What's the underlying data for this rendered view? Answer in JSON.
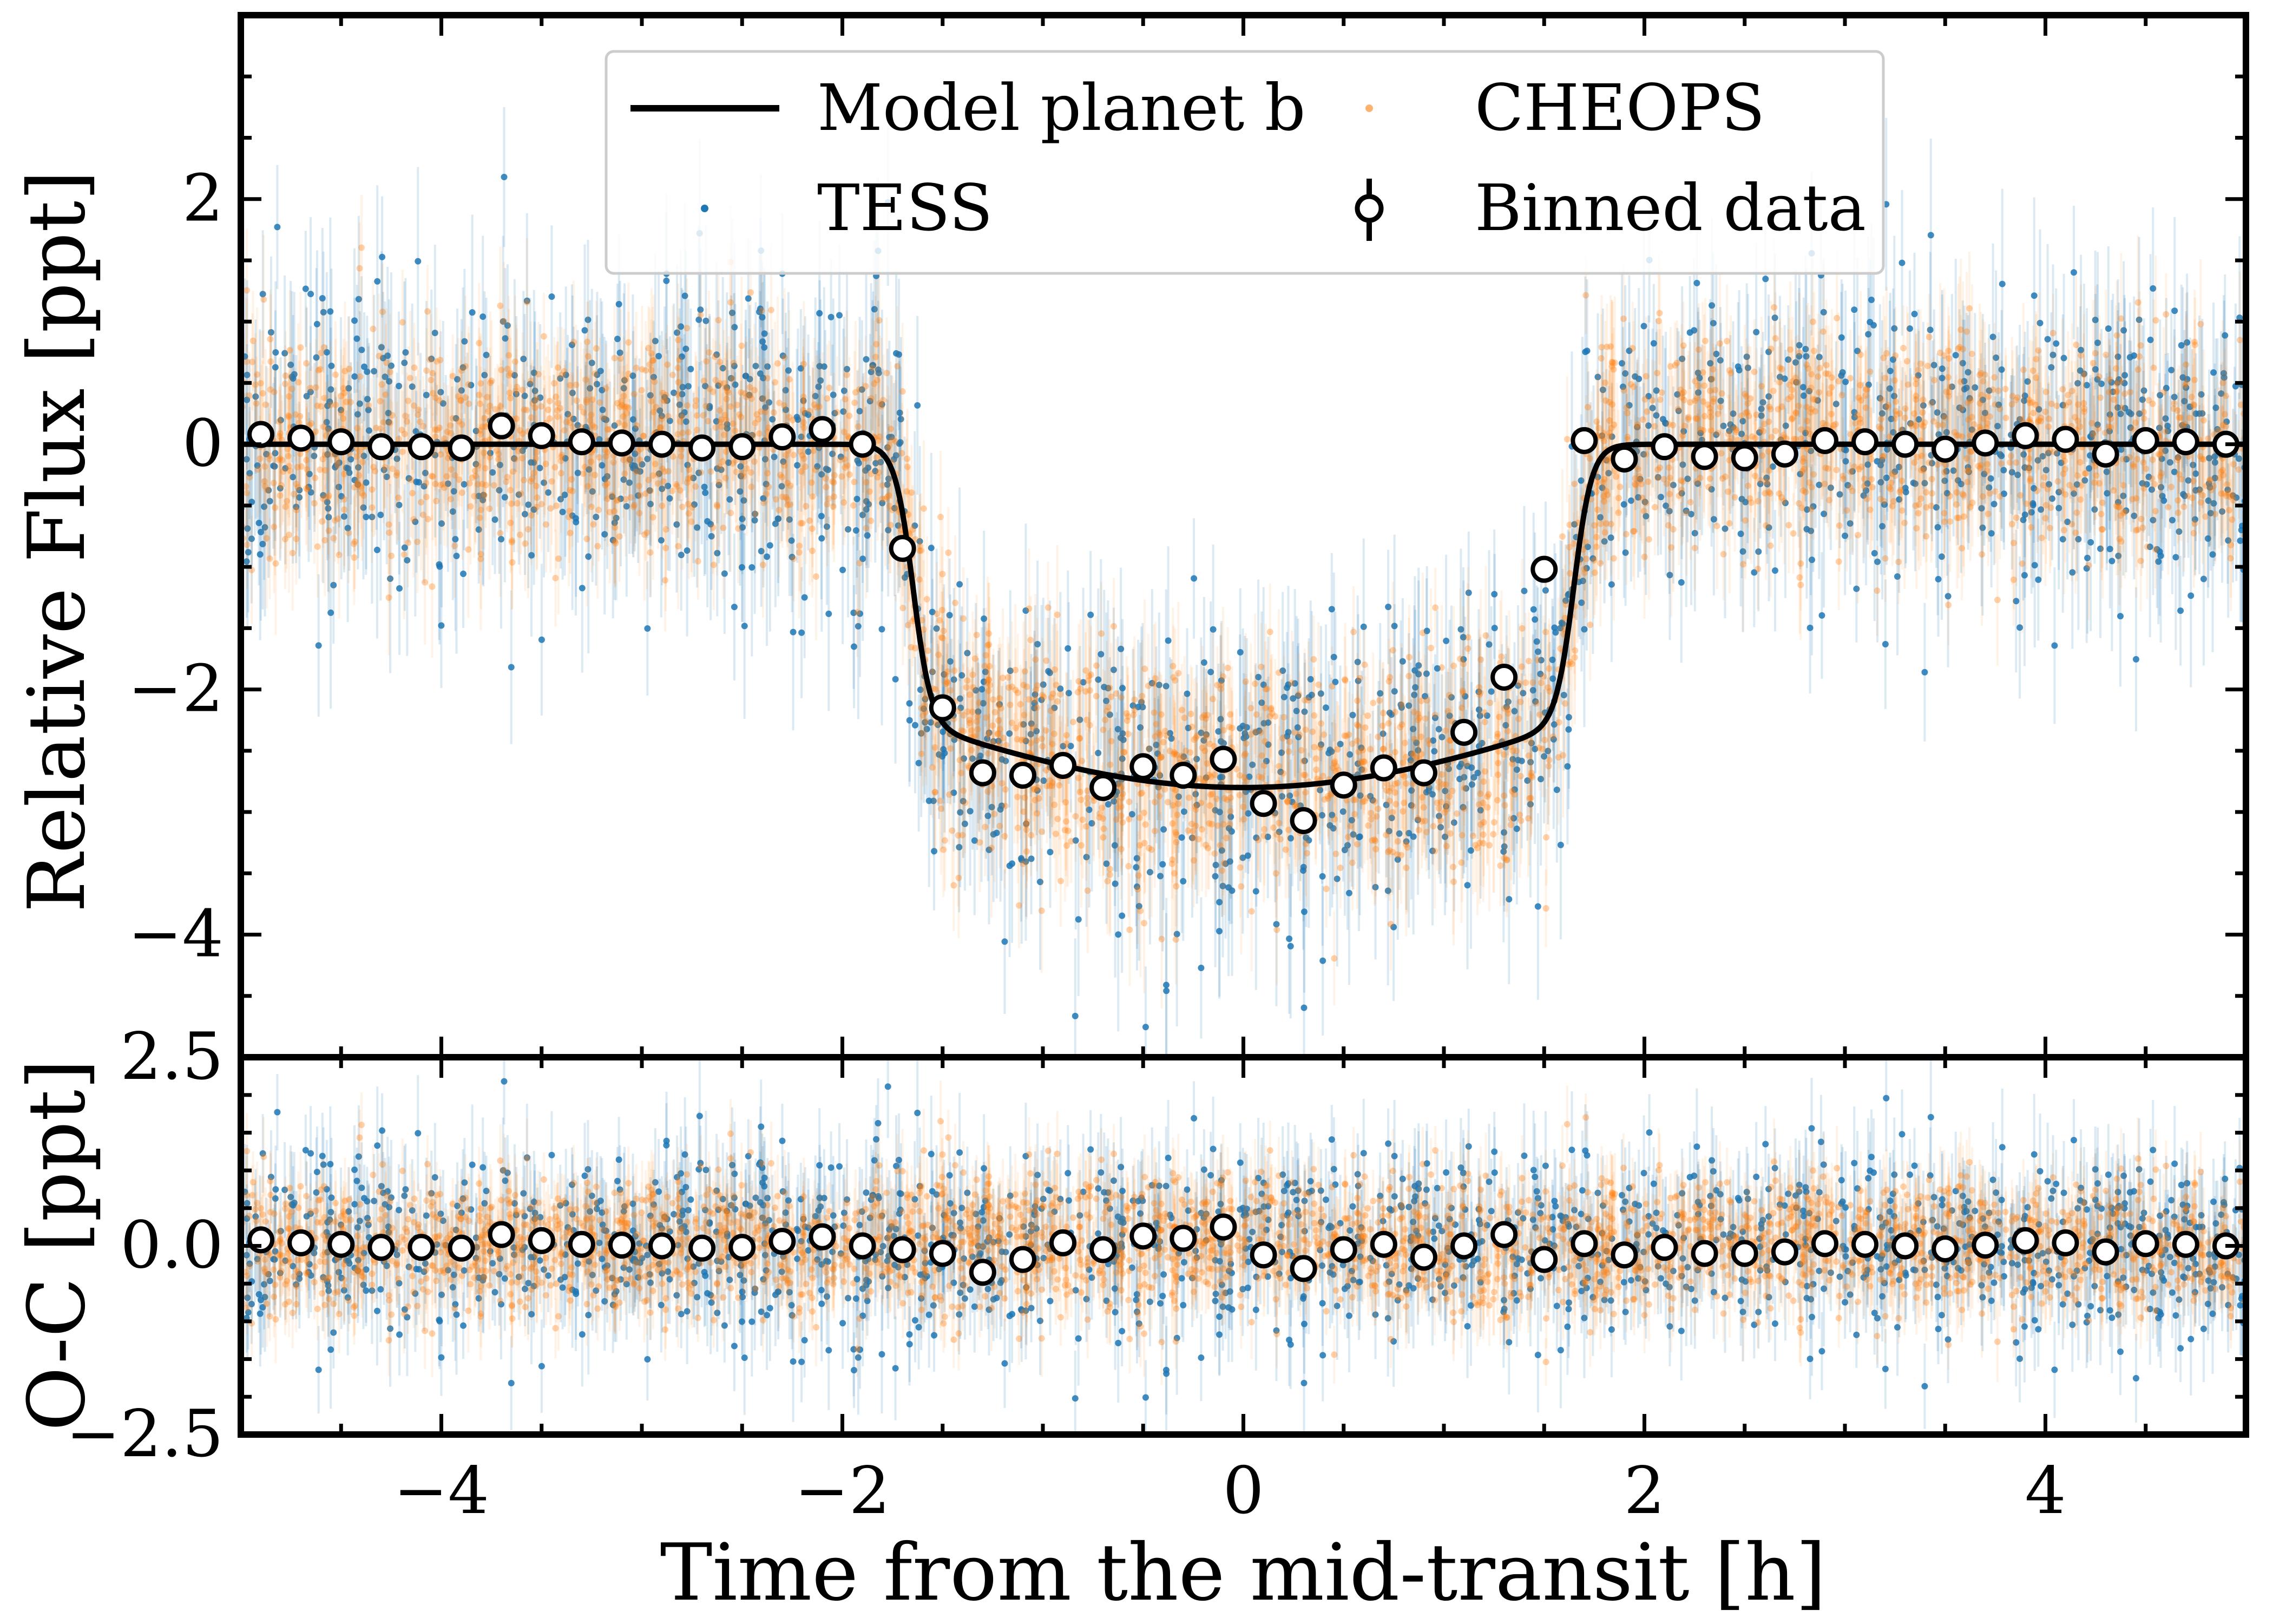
{
  "chart_data": [
    {
      "type": "scatter",
      "panel": "top",
      "xlabel": "",
      "ylabel": "Relative Flux [ppt]",
      "xlim": [
        -5,
        5
      ],
      "ylim": [
        -5,
        3.5
      ],
      "xticks": [
        -4,
        -2,
        0,
        2,
        4
      ],
      "yticks": [
        -4,
        -2,
        0,
        2
      ],
      "ytick_labels": [
        "−4",
        "−2",
        "0",
        "2"
      ],
      "legend_position": "top-center",
      "legend": {
        "model": "Model planet b",
        "tess": "TESS",
        "cheops": "CHEOPS",
        "binned": "Binned data"
      },
      "series": [
        {
          "name": "TESS",
          "style": "scatter-with-errorbars",
          "color": "#1f77b4",
          "description_values": "unbinned photometry, scatter ~0.6 ppt"
        },
        {
          "name": "CHEOPS",
          "style": "scatter-with-errorbars",
          "color": "#ff7f0e",
          "description_values": "unbinned photometry, scatter ~0.5 ppt"
        },
        {
          "name": "Model planet b",
          "style": "line",
          "color": "#000000",
          "transit": {
            "depth": 2.8,
            "half_duration": 1.7,
            "ingress": 0.15
          }
        },
        {
          "name": "Binned data",
          "style": "open-circles",
          "x": [
            -4.9,
            -4.7,
            -4.5,
            -4.3,
            -4.1,
            -3.9,
            -3.7,
            -3.5,
            -3.3,
            -3.1,
            -2.9,
            -2.7,
            -2.5,
            -2.3,
            -2.1,
            -1.9,
            -1.7,
            -1.5,
            -1.3,
            -1.1,
            -0.9,
            -0.7,
            -0.5,
            -0.3,
            -0.1,
            0.1,
            0.3,
            0.5,
            0.7,
            0.9,
            1.1,
            1.3,
            1.5,
            1.7,
            1.9,
            2.1,
            2.3,
            2.5,
            2.7,
            2.9,
            3.1,
            3.3,
            3.5,
            3.7,
            3.9,
            4.1,
            4.3,
            4.5,
            4.7,
            4.9
          ],
          "y": [
            0.08,
            0.05,
            0.02,
            -0.02,
            -0.02,
            -0.03,
            0.15,
            0.07,
            0.02,
            0.01,
            0.0,
            -0.03,
            -0.02,
            0.06,
            0.12,
            0.0,
            -0.85,
            -2.15,
            -2.68,
            -2.7,
            -2.62,
            -2.8,
            -2.63,
            -2.7,
            -2.57,
            -2.93,
            -3.07,
            -2.78,
            -2.64,
            -2.68,
            -2.35,
            -1.9,
            -1.02,
            0.03,
            -0.12,
            -0.02,
            -0.1,
            -0.11,
            -0.08,
            0.03,
            0.02,
            0.0,
            -0.04,
            0.01,
            0.07,
            0.04,
            -0.08,
            0.03,
            0.02,
            0.0
          ]
        }
      ]
    },
    {
      "type": "scatter",
      "panel": "bottom",
      "xlabel": "Time from the mid-transit [h]",
      "ylabel": "O-C [ppt]",
      "xlim": [
        -5,
        5
      ],
      "ylim": [
        -2.5,
        2.5
      ],
      "xticks": [
        -4,
        -2,
        0,
        2,
        4
      ],
      "xtick_labels": [
        "−4",
        "−2",
        "0",
        "2",
        "4"
      ],
      "yticks": [
        -2.5,
        0.0,
        2.5
      ],
      "ytick_labels": [
        "−2.5",
        "0.0",
        "2.5"
      ],
      "series": [
        {
          "name": "TESS residuals",
          "style": "scatter-with-errorbars",
          "color": "#1f77b4"
        },
        {
          "name": "CHEOPS residuals",
          "style": "scatter-with-errorbars",
          "color": "#ff7f0e"
        },
        {
          "name": "Binned residuals",
          "style": "open-circles",
          "x": [
            -4.9,
            -4.7,
            -4.5,
            -4.3,
            -4.1,
            -3.9,
            -3.7,
            -3.5,
            -3.3,
            -3.1,
            -2.9,
            -2.7,
            -2.5,
            -2.3,
            -2.1,
            -1.9,
            -1.7,
            -1.5,
            -1.3,
            -1.1,
            -0.9,
            -0.7,
            -0.5,
            -0.3,
            -0.1,
            0.1,
            0.3,
            0.5,
            0.7,
            0.9,
            1.1,
            1.3,
            1.5,
            1.7,
            1.9,
            2.1,
            2.3,
            2.5,
            2.7,
            2.9,
            3.1,
            3.3,
            3.5,
            3.7,
            3.9,
            4.1,
            4.3,
            4.5,
            4.7,
            4.9
          ],
          "y": [
            0.08,
            0.04,
            0.02,
            -0.02,
            -0.02,
            -0.03,
            0.15,
            0.07,
            0.02,
            0.01,
            0.0,
            -0.03,
            -0.02,
            0.06,
            0.12,
            0.0,
            -0.05,
            -0.1,
            -0.35,
            -0.18,
            0.04,
            -0.05,
            0.13,
            0.1,
            0.25,
            -0.12,
            -0.3,
            -0.05,
            0.02,
            -0.15,
            0.0,
            0.15,
            -0.18,
            0.03,
            -0.12,
            -0.02,
            -0.1,
            -0.1,
            -0.08,
            0.03,
            0.02,
            0.0,
            -0.04,
            0.01,
            0.07,
            0.04,
            -0.08,
            0.03,
            0.02,
            0.0
          ]
        }
      ]
    }
  ]
}
